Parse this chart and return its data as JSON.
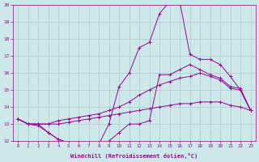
{
  "background_color": "#cce8e8",
  "line_color": "#990099",
  "grid_color": "#aacccc",
  "xlabel": "Windchill (Refroidissement éolien,°C)",
  "xlabel_color": "#990099",
  "tick_color": "#990099",
  "xlim": [
    -0.5,
    23.5
  ],
  "ylim": [
    12,
    20
  ],
  "yticks": [
    12,
    13,
    14,
    15,
    16,
    17,
    18,
    19,
    20
  ],
  "xticks": [
    0,
    1,
    2,
    3,
    4,
    5,
    6,
    7,
    8,
    9,
    10,
    11,
    12,
    13,
    14,
    15,
    16,
    17,
    18,
    19,
    20,
    21,
    22,
    23
  ],
  "line1_x": [
    0,
    1,
    2,
    3,
    4,
    5,
    6,
    7,
    8,
    9,
    10,
    11,
    12,
    13,
    14,
    15,
    16,
    17,
    18,
    19,
    20,
    21,
    22,
    23
  ],
  "line1_y": [
    13.3,
    13.0,
    13.0,
    13.0,
    13.0,
    13.1,
    13.2,
    13.3,
    13.4,
    13.5,
    13.6,
    13.7,
    13.8,
    13.9,
    14.0,
    14.1,
    14.2,
    14.2,
    14.3,
    14.3,
    14.3,
    14.1,
    14.0,
    13.8
  ],
  "line2_x": [
    0,
    1,
    2,
    3,
    4,
    5,
    6,
    7,
    8,
    9,
    10,
    11,
    12,
    13,
    14,
    15,
    16,
    17,
    18,
    19,
    20,
    21,
    22,
    23
  ],
  "line2_y": [
    13.3,
    13.0,
    13.0,
    13.0,
    13.2,
    13.3,
    13.4,
    13.5,
    13.6,
    13.8,
    14.0,
    14.3,
    14.7,
    15.0,
    15.3,
    15.5,
    15.7,
    15.8,
    16.0,
    15.8,
    15.6,
    15.1,
    15.0,
    13.8
  ],
  "line3_x": [
    0,
    1,
    2,
    3,
    4,
    5,
    6,
    7,
    8,
    9,
    10,
    11,
    12,
    13,
    14,
    15,
    16,
    17,
    18,
    19,
    20,
    21,
    22,
    23
  ],
  "line3_y": [
    13.3,
    13.0,
    13.0,
    12.5,
    12.1,
    11.9,
    11.9,
    11.8,
    11.8,
    12.0,
    12.5,
    13.0,
    13.0,
    13.2,
    15.9,
    15.9,
    16.2,
    16.5,
    16.2,
    15.9,
    15.7,
    15.2,
    15.1,
    13.8
  ],
  "line4_x": [
    0,
    1,
    2,
    3,
    4,
    5,
    6,
    7,
    8,
    9,
    10,
    11,
    12,
    13,
    14,
    15,
    16,
    17,
    18,
    19,
    20,
    21,
    22,
    23
  ],
  "line4_y": [
    13.3,
    13.0,
    12.9,
    12.5,
    12.1,
    11.9,
    11.9,
    11.8,
    11.8,
    13.0,
    15.2,
    16.0,
    17.5,
    17.8,
    19.5,
    20.2,
    20.2,
    17.1,
    16.8,
    16.8,
    16.5,
    15.8,
    15.0,
    13.8
  ]
}
